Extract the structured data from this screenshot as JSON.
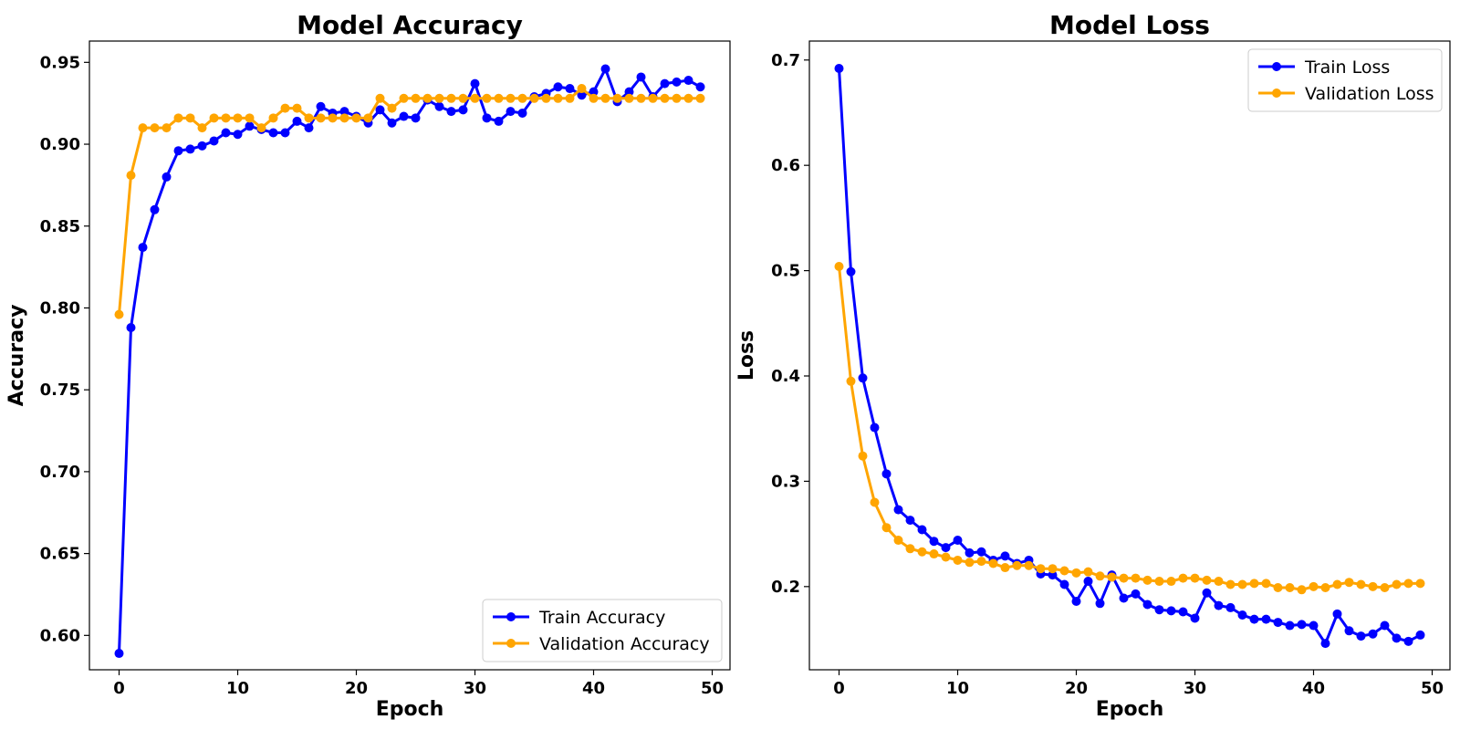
{
  "chart_data": [
    {
      "type": "line",
      "title": "Model Accuracy",
      "xlabel": "Epoch",
      "ylabel": "Accuracy",
      "xlim": [
        -2.5,
        51.5
      ],
      "ylim": [
        0.579,
        0.963
      ],
      "xticks": [
        0,
        10,
        20,
        30,
        40,
        50
      ],
      "yticks": [
        0.6,
        0.65,
        0.7,
        0.75,
        0.8,
        0.85,
        0.9,
        0.95
      ],
      "ytick_labels": [
        "0.60",
        "0.65",
        "0.70",
        "0.75",
        "0.80",
        "0.85",
        "0.90",
        "0.95"
      ],
      "grid": false,
      "legend_position": "lower-right",
      "series": [
        {
          "name": "Train Accuracy",
          "color": "#0000ff",
          "values": [
            0.589,
            0.788,
            0.837,
            0.86,
            0.88,
            0.896,
            0.897,
            0.899,
            0.902,
            0.907,
            0.906,
            0.911,
            0.909,
            0.907,
            0.907,
            0.914,
            0.91,
            0.923,
            0.919,
            0.92,
            0.917,
            0.913,
            0.921,
            0.913,
            0.917,
            0.916,
            0.927,
            0.923,
            0.92,
            0.921,
            0.937,
            0.916,
            0.914,
            0.92,
            0.919,
            0.929,
            0.931,
            0.935,
            0.934,
            0.93,
            0.932,
            0.946,
            0.926,
            0.932,
            0.941,
            0.929,
            0.937,
            0.938,
            0.939,
            0.935
          ]
        },
        {
          "name": "Validation Accuracy",
          "color": "#ffa500",
          "values": [
            0.796,
            0.881,
            0.91,
            0.91,
            0.91,
            0.916,
            0.916,
            0.91,
            0.916,
            0.916,
            0.916,
            0.916,
            0.91,
            0.916,
            0.922,
            0.922,
            0.916,
            0.916,
            0.916,
            0.916,
            0.916,
            0.916,
            0.928,
            0.922,
            0.928,
            0.928,
            0.928,
            0.928,
            0.928,
            0.928,
            0.928,
            0.928,
            0.928,
            0.928,
            0.928,
            0.928,
            0.928,
            0.928,
            0.928,
            0.934,
            0.928,
            0.928,
            0.928,
            0.928,
            0.928,
            0.928,
            0.928,
            0.928,
            0.928,
            0.928
          ]
        }
      ]
    },
    {
      "type": "line",
      "title": "Model Loss",
      "xlabel": "Epoch",
      "ylabel": "Loss",
      "xlim": [
        -2.5,
        51.5
      ],
      "ylim": [
        0.121,
        0.718
      ],
      "xticks": [
        0,
        10,
        20,
        30,
        40,
        50
      ],
      "yticks": [
        0.2,
        0.3,
        0.4,
        0.5,
        0.6,
        0.7
      ],
      "ytick_labels": [
        "0.2",
        "0.3",
        "0.4",
        "0.5",
        "0.6",
        "0.7"
      ],
      "grid": false,
      "legend_position": "upper-right",
      "series": [
        {
          "name": "Train Loss",
          "color": "#0000ff",
          "values": [
            0.692,
            0.499,
            0.398,
            0.351,
            0.307,
            0.273,
            0.263,
            0.254,
            0.243,
            0.237,
            0.244,
            0.232,
            0.233,
            0.225,
            0.229,
            0.222,
            0.225,
            0.212,
            0.211,
            0.202,
            0.186,
            0.205,
            0.184,
            0.211,
            0.189,
            0.193,
            0.183,
            0.178,
            0.177,
            0.176,
            0.17,
            0.194,
            0.182,
            0.18,
            0.173,
            0.169,
            0.169,
            0.166,
            0.163,
            0.164,
            0.163,
            0.146,
            0.174,
            0.158,
            0.153,
            0.155,
            0.163,
            0.151,
            0.148,
            0.154
          ]
        },
        {
          "name": "Validation Loss",
          "color": "#ffa500",
          "values": [
            0.504,
            0.395,
            0.324,
            0.28,
            0.256,
            0.244,
            0.236,
            0.233,
            0.231,
            0.228,
            0.225,
            0.223,
            0.224,
            0.222,
            0.218,
            0.22,
            0.22,
            0.217,
            0.217,
            0.215,
            0.213,
            0.214,
            0.21,
            0.209,
            0.208,
            0.208,
            0.206,
            0.205,
            0.205,
            0.208,
            0.208,
            0.206,
            0.205,
            0.202,
            0.202,
            0.203,
            0.203,
            0.199,
            0.199,
            0.197,
            0.2,
            0.199,
            0.202,
            0.204,
            0.202,
            0.2,
            0.199,
            0.202,
            0.203,
            0.203
          ]
        }
      ]
    }
  ]
}
